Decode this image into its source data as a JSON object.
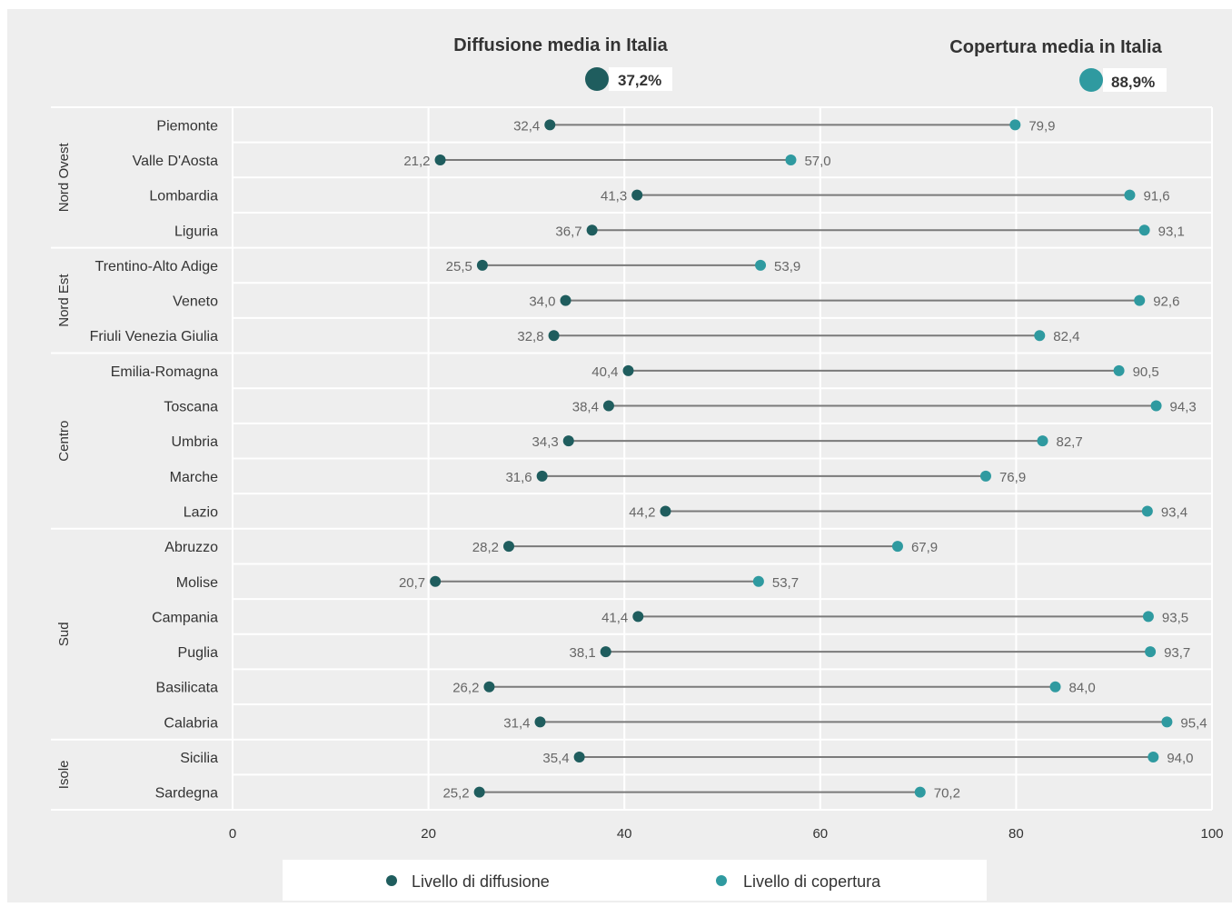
{
  "summary": {
    "diffusion": {
      "title": "Diffusione media in Italia",
      "value": "37,2%"
    },
    "coverage": {
      "title": "Copertura media in Italia",
      "value": "88,9%"
    }
  },
  "colors": {
    "diffusion": "#1f5d5e",
    "coverage": "#2f9aa0",
    "panel": "#eeeeee",
    "grid": "#ffffff",
    "line": "#7a7a7a",
    "text": "#333333",
    "label": "#666666"
  },
  "legend": {
    "diffusion_label": "Livello di diffusione",
    "coverage_label": "Livello di copertura"
  },
  "chart_data": {
    "type": "dumbbell",
    "xlim": [
      0,
      100
    ],
    "xticks": [
      0,
      20,
      40,
      60,
      80,
      100
    ],
    "groups": [
      {
        "name": "Nord Ovest",
        "rows": [
          0,
          3
        ]
      },
      {
        "name": "Nord Est",
        "rows": [
          4,
          6
        ]
      },
      {
        "name": "Centro",
        "rows": [
          7,
          11
        ]
      },
      {
        "name": "Sud",
        "rows": [
          12,
          17
        ]
      },
      {
        "name": "Isole",
        "rows": [
          18,
          19
        ]
      }
    ],
    "categories": [
      "Piemonte",
      "Valle D'Aosta",
      "Lombardia",
      "Liguria",
      "Trentino-Alto Adige",
      "Veneto",
      "Friuli Venezia Giulia",
      "Emilia-Romagna",
      "Toscana",
      "Umbria",
      "Marche",
      "Lazio",
      "Abruzzo",
      "Molise",
      "Campania",
      "Puglia",
      "Basilicata",
      "Calabria",
      "Sicilia",
      "Sardegna"
    ],
    "series": [
      {
        "name": "Livello di diffusione",
        "values": [
          32.4,
          21.2,
          41.3,
          36.7,
          25.5,
          34.0,
          32.8,
          40.4,
          38.4,
          34.3,
          31.6,
          44.2,
          28.2,
          20.7,
          41.4,
          38.1,
          26.2,
          31.4,
          35.4,
          25.2
        ],
        "labels": [
          "32,4",
          "21,2",
          "41,3",
          "36,7",
          "25,5",
          "34,0",
          "32,8",
          "40,4",
          "38,4",
          "34,3",
          "31,6",
          "44,2",
          "28,2",
          "20,7",
          "41,4",
          "38,1",
          "26,2",
          "31,4",
          "35,4",
          "25,2"
        ]
      },
      {
        "name": "Livello di copertura",
        "values": [
          79.9,
          57.0,
          91.6,
          93.1,
          53.9,
          92.6,
          82.4,
          90.5,
          94.3,
          82.7,
          76.9,
          93.4,
          67.9,
          53.7,
          93.5,
          93.7,
          84.0,
          95.4,
          94.0,
          70.2
        ],
        "labels": [
          "79,9",
          "57,0",
          "91,6",
          "93,1",
          "53,9",
          "92,6",
          "82,4",
          "90,5",
          "94,3",
          "82,7",
          "76,9",
          "93,4",
          "67,9",
          "53,7",
          "93,5",
          "93,7",
          "84,0",
          "95,4",
          "94,0",
          "70,2"
        ]
      }
    ]
  }
}
